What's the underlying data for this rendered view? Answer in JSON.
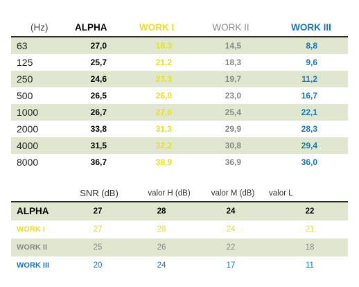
{
  "table1": {
    "headers": {
      "hz": "(Hz)",
      "alpha": "ALPHA",
      "work1": "WORK I",
      "work2": "WORK II",
      "work3": "WORK III"
    },
    "rows": [
      {
        "hz": "63",
        "alpha": "27,0",
        "work1": "18,3",
        "work2": "14,5",
        "work3": "8,8"
      },
      {
        "hz": "125",
        "alpha": "25,7",
        "work1": "21,2",
        "work2": "18,3",
        "work3": "9,6"
      },
      {
        "hz": "250",
        "alpha": "24,6",
        "work1": "23,3",
        "work2": "19,7",
        "work3": "11,2"
      },
      {
        "hz": "500",
        "alpha": "26,5",
        "work1": "26,0",
        "work2": "23,0",
        "work3": "16,7"
      },
      {
        "hz": "1000",
        "alpha": "26,7",
        "work1": "27,6",
        "work2": "25,4",
        "work3": "22,1"
      },
      {
        "hz": "2000",
        "alpha": "33,8",
        "work1": "31,3",
        "work2": "29,9",
        "work3": "28,3"
      },
      {
        "hz": "4000",
        "alpha": "31,5",
        "work1": "32,2",
        "work2": "30,8",
        "work3": "29,4"
      },
      {
        "hz": "8000",
        "alpha": "36,7",
        "work1": "38,9",
        "work2": "36,9",
        "work3": "36,0"
      }
    ]
  },
  "table2": {
    "headers": {
      "snr": "SNR (dB)",
      "h": "valor H (dB)",
      "m": "valor M (dB)",
      "l": "valor L"
    },
    "rows": [
      {
        "label": "ALPHA",
        "snr": "27",
        "h": "28",
        "m": "24",
        "l": "22"
      },
      {
        "label": "WORK I",
        "snr": "27",
        "h": "28",
        "m": "24",
        "l": "21"
      },
      {
        "label": "WORK II",
        "snr": "25",
        "h": "26",
        "m": "22",
        "l": "18"
      },
      {
        "label": "WORK III",
        "snr": "20",
        "h": "24",
        "m": "17",
        "l": "11"
      }
    ]
  },
  "colors": {
    "alpha": "#000000",
    "work1": "#e9e024",
    "work2": "#8a8a8a",
    "work3": "#1b75bc",
    "shade": "#dfe8cf"
  }
}
